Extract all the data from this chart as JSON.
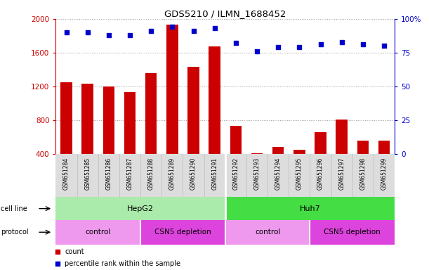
{
  "title": "GDS5210 / ILMN_1688452",
  "samples": [
    "GSM651284",
    "GSM651285",
    "GSM651286",
    "GSM651287",
    "GSM651288",
    "GSM651289",
    "GSM651290",
    "GSM651291",
    "GSM651292",
    "GSM651293",
    "GSM651294",
    "GSM651295",
    "GSM651296",
    "GSM651297",
    "GSM651298",
    "GSM651299"
  ],
  "counts": [
    1250,
    1230,
    1200,
    1130,
    1360,
    1930,
    1430,
    1670,
    730,
    410,
    480,
    450,
    660,
    810,
    560,
    560
  ],
  "percentile_ranks": [
    90,
    90,
    88,
    88,
    91,
    94,
    91,
    93,
    82,
    76,
    79,
    79,
    81,
    83,
    81,
    80
  ],
  "ylim_left": [
    400,
    2000
  ],
  "ylim_right": [
    0,
    100
  ],
  "yticks_left": [
    400,
    800,
    1200,
    1600,
    2000
  ],
  "yticks_right": [
    0,
    25,
    50,
    75,
    100
  ],
  "bar_color": "#cc0000",
  "dot_color": "#0000cc",
  "cell_line_hepg2_color": "#aaeaaa",
  "cell_line_huh7_color": "#44dd44",
  "protocol_color_control": "#ee99ee",
  "protocol_color_csn5": "#dd44dd",
  "bg_color": "#ffffff",
  "grid_color": "#999999",
  "tick_label_area_color": "#dddddd",
  "separator_color": "#ffffff"
}
